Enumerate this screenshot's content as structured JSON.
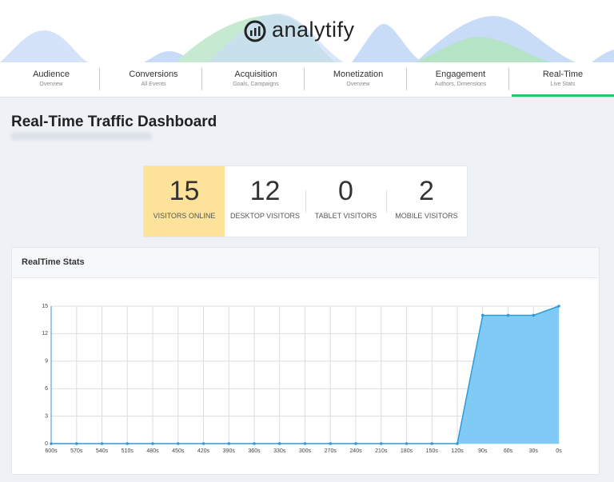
{
  "header": {
    "logo": "analytify"
  },
  "tabs": [
    {
      "label": "Audience",
      "sublabel": "Overview"
    },
    {
      "label": "Conversions",
      "sublabel": "All Events"
    },
    {
      "label": "Acquisition",
      "sublabel": "Goals, Campaigns"
    },
    {
      "label": "Monetization",
      "sublabel": "Overview"
    },
    {
      "label": "Engagement",
      "sublabel": "Authors, Dimensions"
    },
    {
      "label": "Real-Time",
      "sublabel": "Live Stats"
    }
  ],
  "page_title": "Real-Time Traffic Dashboard",
  "stats": [
    {
      "value": 15,
      "label": "VISITORS ONLINE"
    },
    {
      "value": 12,
      "label": "DESKTOP VISITORS"
    },
    {
      "value": 0,
      "label": "TABLET VISITORS"
    },
    {
      "value": 2,
      "label": "MOBILE VISITORS"
    }
  ],
  "panel_title": "RealTime Stats",
  "chart_data": {
    "type": "area",
    "categories": [
      "600s",
      "570s",
      "540s",
      "510s",
      "480s",
      "450s",
      "420s",
      "390s",
      "360s",
      "330s",
      "300s",
      "270s",
      "240s",
      "210s",
      "180s",
      "150s",
      "120s",
      "90s",
      "60s",
      "30s",
      "0s"
    ],
    "values": [
      0,
      0,
      0,
      0,
      0,
      0,
      0,
      0,
      0,
      0,
      0,
      0,
      0,
      0,
      0,
      0,
      0,
      14,
      14,
      14,
      15
    ],
    "color": "#7fcbf5",
    "ylim": [
      0,
      15
    ],
    "yticks": [
      0,
      3,
      6,
      9,
      12,
      15
    ],
    "grid": true
  }
}
